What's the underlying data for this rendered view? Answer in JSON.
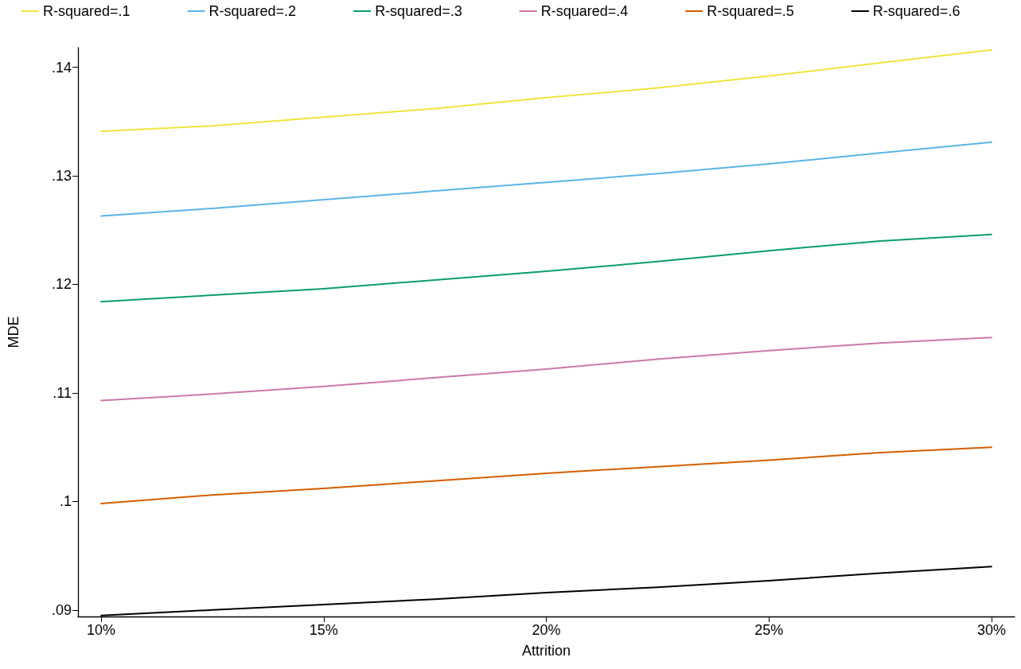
{
  "chart_data": {
    "type": "line",
    "xlabel": "Attrition",
    "ylabel": "MDE",
    "x": [
      10,
      12.5,
      15,
      17.5,
      20,
      22.5,
      25,
      27.5,
      30
    ],
    "series": [
      {
        "name": "R-squared=.1",
        "color": "#efe440",
        "values": [
          0.1341,
          0.1346,
          0.1354,
          0.1362,
          0.1372,
          0.1381,
          0.1392,
          0.1404,
          0.1416
        ]
      },
      {
        "name": "R-squared=.2",
        "color": "#5db4e6",
        "values": [
          0.1263,
          0.127,
          0.1278,
          0.1286,
          0.1294,
          0.1302,
          0.1311,
          0.1321,
          0.1331
        ]
      },
      {
        "name": "R-squared=.3",
        "color": "#0c9c73",
        "values": [
          0.1184,
          0.119,
          0.1196,
          0.1204,
          0.1212,
          0.1221,
          0.1231,
          0.124,
          0.1246
        ]
      },
      {
        "name": "R-squared=.4",
        "color": "#cc79a7",
        "values": [
          0.1093,
          0.1099,
          0.1106,
          0.1114,
          0.1122,
          0.1131,
          0.1139,
          0.1146,
          0.1151
        ]
      },
      {
        "name": "R-squared=.5",
        "color": "#d55e00",
        "values": [
          0.0998,
          0.1006,
          0.1012,
          0.1019,
          0.1026,
          0.1032,
          0.1038,
          0.1045,
          0.105
        ]
      },
      {
        "name": "R-squared=.6",
        "color": "#000000",
        "values": [
          0.0895,
          0.09,
          0.0905,
          0.091,
          0.0916,
          0.0921,
          0.0927,
          0.0934,
          0.094
        ]
      }
    ],
    "xlim": [
      9.48,
      30.52
    ],
    "xticks": [
      {
        "value": 10,
        "label": "10%"
      },
      {
        "value": 15,
        "label": "15%"
      },
      {
        "value": 20,
        "label": "20%"
      },
      {
        "value": 25,
        "label": "25%"
      },
      {
        "value": 30,
        "label": "30%"
      }
    ],
    "ylim": [
      0.0894,
      0.1418
    ],
    "yticks": [
      {
        "value": 0.09,
        "label": ".09"
      },
      {
        "value": 0.1,
        "label": ".1"
      },
      {
        "value": 0.11,
        "label": ".11"
      },
      {
        "value": 0.12,
        "label": ".12"
      },
      {
        "value": 0.13,
        "label": ".13"
      },
      {
        "value": 0.14,
        "label": ".14"
      }
    ],
    "grid": false,
    "legend": "top",
    "marker": "none",
    "line_style": "solid"
  }
}
